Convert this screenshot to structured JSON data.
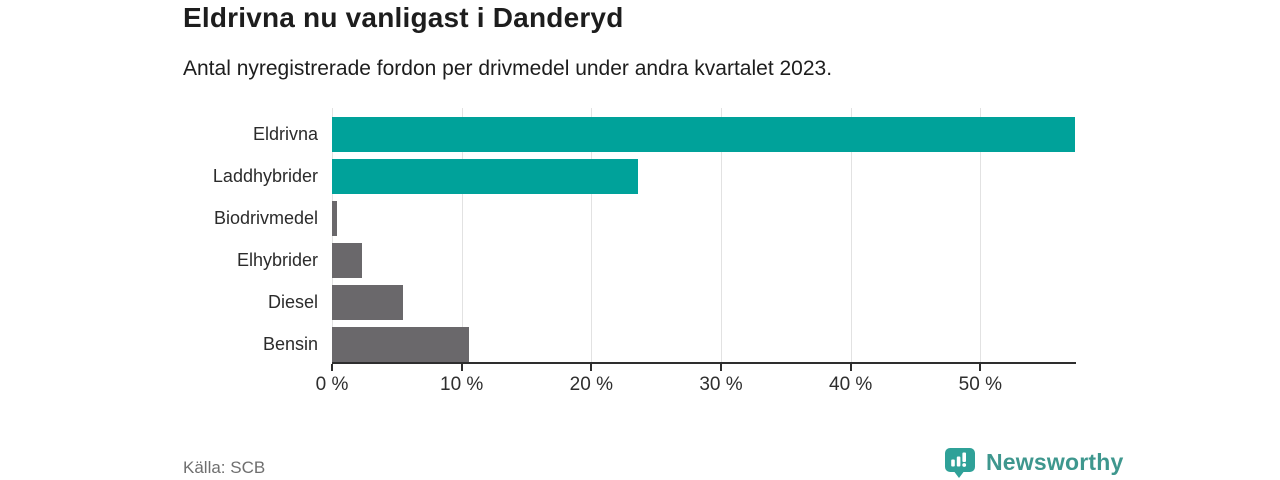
{
  "header": {
    "title": "Eldrivna nu vanligast i Danderyd",
    "subtitle": "Antal nyregistrerade fordon per drivmedel under andra kvartalet 2023."
  },
  "footer": {
    "source": "Källa: SCB",
    "brand_name": "Newsworthy"
  },
  "colors": {
    "highlight": "#00a29a",
    "default_bar": "#6a686b",
    "grid": "#e2e2e2",
    "axis": "#2e2e2e",
    "brand_text": "#3e978e",
    "brand_icon": "#2fa198"
  },
  "chart_data": {
    "type": "bar",
    "orientation": "horizontal",
    "title": "Eldrivna nu vanligast i Danderyd",
    "subtitle": "Antal nyregistrerade fordon per drivmedel under andra kvartalet 2023.",
    "xlabel": "",
    "ylabel": "",
    "unit": "%",
    "categories": [
      "Eldrivna",
      "Laddhybrider",
      "Biodrivmedel",
      "Elhybrider",
      "Diesel",
      "Bensin"
    ],
    "values": [
      57.3,
      23.6,
      0.4,
      2.3,
      5.5,
      10.6
    ],
    "bar_colors": [
      "#00a29a",
      "#00a29a",
      "#6a686b",
      "#6a686b",
      "#6a686b",
      "#6a686b"
    ],
    "xlim": [
      0,
      57.3
    ],
    "ticks": [
      0,
      10,
      20,
      30,
      40,
      50
    ],
    "tick_labels": [
      "0 %",
      "10 %",
      "20 %",
      "30 %",
      "40 %",
      "50 %"
    ],
    "grid": true,
    "legend": false
  }
}
